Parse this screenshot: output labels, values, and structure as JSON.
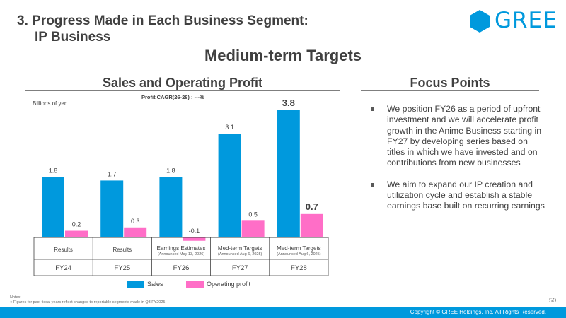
{
  "header": {
    "section_title_line1": "3. Progress Made in Each Business Segment:",
    "section_title_line2": "IP Business",
    "logo_text": "GREE",
    "brand_color": "#0099dd"
  },
  "main_title": "Medium-term Targets",
  "left_panel": {
    "title": "Sales and Operating Profit",
    "cagr_label": "Profit CAGR(26-28) : ---%",
    "unit_label": "Billions of yen"
  },
  "right_panel": {
    "title": "Focus Points",
    "bullets": [
      "We position FY26 as a period of upfront investment and we will accelerate profit growth in the Anime Business starting in FY27 by developing series based on titles in which we have invested and on contributions from new businesses",
      "We aim to expand our IP creation and utilization cycle and establish a stable earnings base built on recurring earnings"
    ]
  },
  "chart_data": {
    "type": "bar",
    "categories": [
      {
        "label": "Results",
        "sublabel": "",
        "year": "FY24"
      },
      {
        "label": "Results",
        "sublabel": "",
        "year": "FY25"
      },
      {
        "label": "Earnings Estimates",
        "sublabel": "(Announced May 13, 2026)",
        "year": "FY26"
      },
      {
        "label": "Med-term Targets",
        "sublabel": "(Announced Aug 6, 2025)",
        "year": "FY27"
      },
      {
        "label": "Med-term Targets",
        "sublabel": "(Announced Aug 6, 2025)",
        "year": "FY28"
      }
    ],
    "series": [
      {
        "name": "Sales",
        "color": "#0099dd",
        "values": [
          1.8,
          1.7,
          1.8,
          3.1,
          3.8
        ],
        "labels": [
          "1.8",
          "1.7",
          "1.8",
          "3.1",
          "3.8"
        ]
      },
      {
        "name": "Operating profit",
        "color": "#ff6ec7",
        "values": [
          0.2,
          0.3,
          -0.1,
          0.5,
          0.7
        ],
        "labels": [
          "0.2",
          "0.3",
          "-0.1",
          "0.5",
          "0.7"
        ]
      }
    ],
    "emphasized_category": "FY28",
    "ylim": [
      -0.1,
      3.8
    ]
  },
  "notes": {
    "heading": "Notes:",
    "items": [
      "Figures for past fiscal years reflect changes to reportable segments made in Q3 FY2025"
    ]
  },
  "page_number": "50",
  "footer": {
    "copyright": "Copyright © GREE Holdings, Inc. All Rights Reserved."
  }
}
